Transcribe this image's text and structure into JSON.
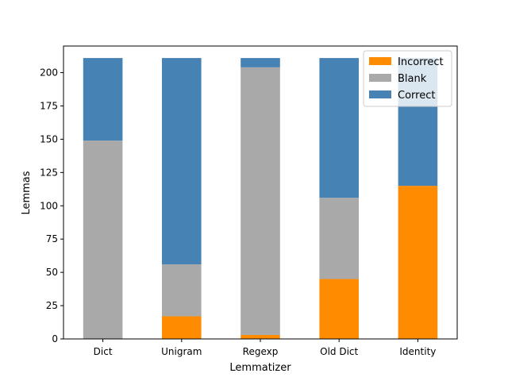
{
  "chart_data": {
    "type": "bar",
    "stacked": true,
    "title": "",
    "xlabel": "Lemmatizer",
    "ylabel": "Lemmas",
    "ylim": [
      0,
      220
    ],
    "yticks": [
      0,
      25,
      50,
      75,
      100,
      125,
      150,
      175,
      200
    ],
    "grid": false,
    "legend_position": "top-right",
    "categories": [
      "Dict",
      "Unigram",
      "Regexp",
      "Old Dict",
      "Identity"
    ],
    "series": [
      {
        "name": "Incorrect",
        "color": "#ff8c00",
        "values": [
          0,
          17,
          3,
          45,
          115
        ]
      },
      {
        "name": "Blank",
        "color": "#a9a9a9",
        "values": [
          149,
          39,
          201,
          61,
          0
        ]
      },
      {
        "name": "Correct",
        "color": "#4682b4",
        "values": [
          62,
          155,
          7,
          105,
          96
        ]
      }
    ]
  }
}
